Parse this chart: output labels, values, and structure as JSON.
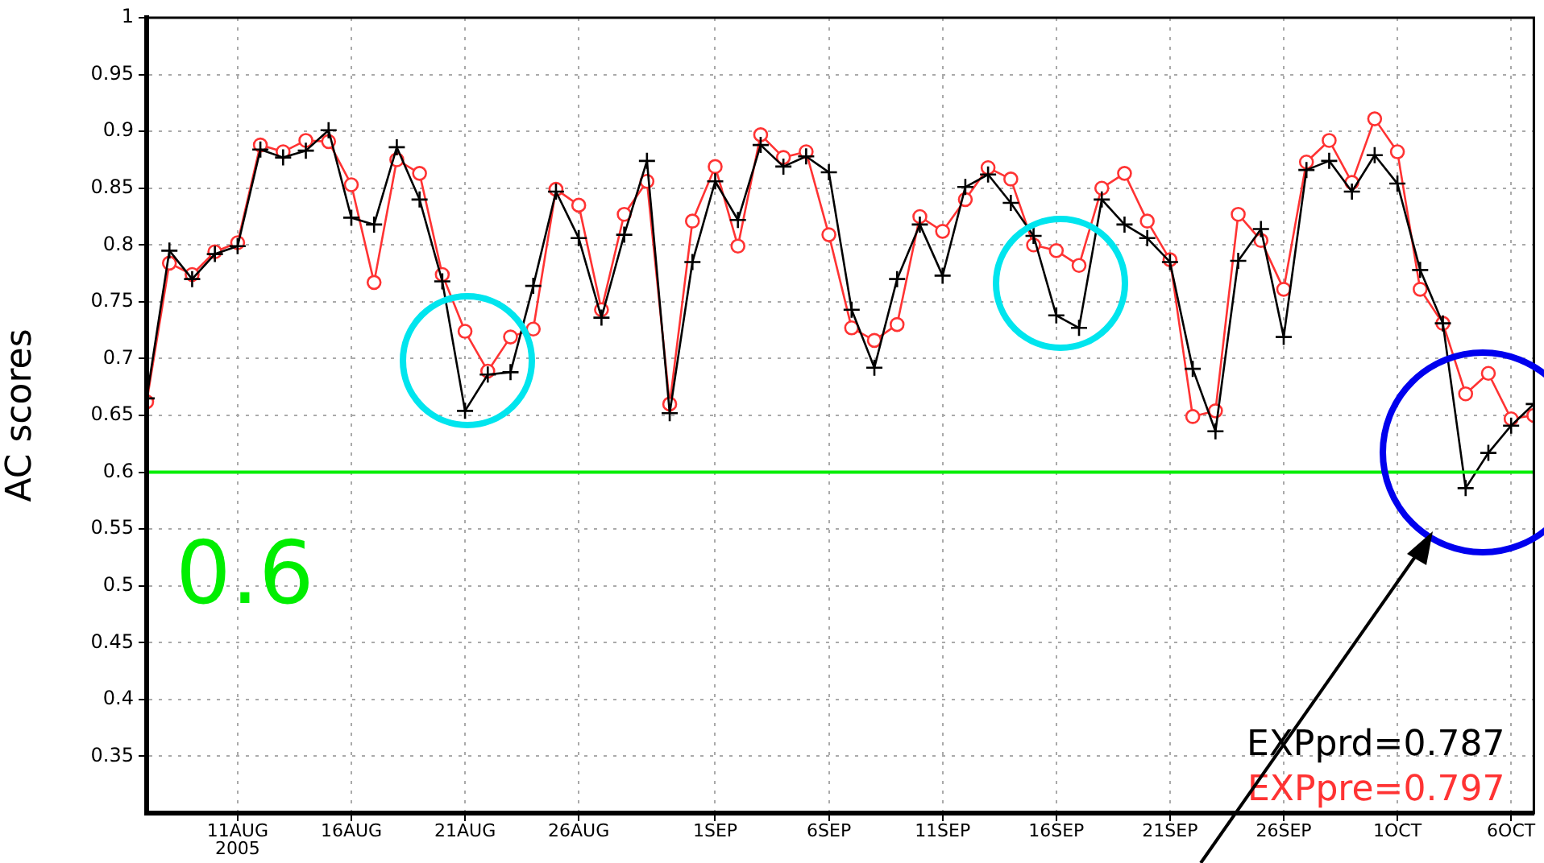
{
  "chart_data": {
    "type": "line",
    "ylabel": "AC scores",
    "x": [
      "2005-08-07",
      "2005-08-08",
      "2005-08-09",
      "2005-08-10",
      "2005-08-11",
      "2005-08-12",
      "2005-08-13",
      "2005-08-14",
      "2005-08-15",
      "2005-08-16",
      "2005-08-17",
      "2005-08-18",
      "2005-08-19",
      "2005-08-20",
      "2005-08-21",
      "2005-08-22",
      "2005-08-23",
      "2005-08-24",
      "2005-08-25",
      "2005-08-26",
      "2005-08-27",
      "2005-08-28",
      "2005-08-29",
      "2005-08-30",
      "2005-08-31",
      "2005-09-01",
      "2005-09-02",
      "2005-09-03",
      "2005-09-04",
      "2005-09-05",
      "2005-09-06",
      "2005-09-07",
      "2005-09-08",
      "2005-09-09",
      "2005-09-10",
      "2005-09-11",
      "2005-09-12",
      "2005-09-13",
      "2005-09-14",
      "2005-09-15",
      "2005-09-16",
      "2005-09-17",
      "2005-09-18",
      "2005-09-19",
      "2005-09-20",
      "2005-09-21",
      "2005-09-22",
      "2005-09-23",
      "2005-09-24",
      "2005-09-25",
      "2005-09-26",
      "2005-09-27",
      "2005-09-28",
      "2005-09-29",
      "2005-09-30",
      "2005-10-01",
      "2005-10-02",
      "2005-10-03",
      "2005-10-04",
      "2005-10-05",
      "2005-10-06",
      "2005-10-07"
    ],
    "series": [
      {
        "name": "EXPprd=0.787",
        "color": "#000000",
        "marker": "cross",
        "values": [
          0.665,
          0.795,
          0.77,
          0.792,
          0.799,
          0.884,
          0.877,
          0.883,
          0.901,
          0.824,
          0.818,
          0.886,
          0.84,
          0.768,
          0.654,
          0.686,
          0.688,
          0.764,
          0.847,
          0.806,
          0.736,
          0.809,
          0.874,
          0.652,
          0.785,
          0.856,
          0.822,
          0.888,
          0.869,
          0.878,
          0.864,
          0.743,
          0.692,
          0.77,
          0.818,
          0.773,
          0.851,
          0.862,
          0.837,
          0.808,
          0.738,
          0.727,
          0.84,
          0.818,
          0.806,
          0.785,
          0.691,
          0.636,
          0.786,
          0.814,
          0.719,
          0.866,
          0.874,
          0.847,
          0.879,
          0.854,
          0.778,
          0.731,
          0.586,
          0.617,
          0.641,
          0.66
        ]
      },
      {
        "name": "EXPpre=0.797",
        "color": "#ff3333",
        "marker": "circle",
        "values": [
          0.662,
          0.784,
          0.774,
          0.794,
          0.802,
          0.888,
          0.882,
          0.892,
          0.891,
          0.853,
          0.767,
          0.875,
          0.863,
          0.774,
          0.724,
          0.689,
          0.719,
          0.726,
          0.849,
          0.835,
          0.743,
          0.827,
          0.856,
          0.66,
          0.821,
          0.869,
          0.799,
          0.897,
          0.877,
          0.882,
          0.809,
          0.727,
          0.716,
          0.73,
          0.825,
          0.812,
          0.84,
          0.868,
          0.858,
          0.8,
          0.795,
          0.782,
          0.85,
          0.863,
          0.821,
          0.787,
          0.649,
          0.654,
          0.827,
          0.804,
          0.761,
          0.873,
          0.892,
          0.855,
          0.911,
          0.882,
          0.761,
          0.731,
          0.669,
          0.687,
          0.647,
          0.65
        ]
      }
    ],
    "xlim": [
      "2005-08-07",
      "2005-10-07"
    ],
    "xticks": [
      {
        "value": "2005-08-11",
        "label": "11AUG\n2005"
      },
      {
        "value": "2005-08-16",
        "label": "16AUG"
      },
      {
        "value": "2005-08-21",
        "label": "21AUG"
      },
      {
        "value": "2005-08-26",
        "label": "26AUG"
      },
      {
        "value": "2005-09-01",
        "label": "1SEP"
      },
      {
        "value": "2005-09-06",
        "label": "6SEP"
      },
      {
        "value": "2005-09-11",
        "label": "11SEP"
      },
      {
        "value": "2005-09-16",
        "label": "16SEP"
      },
      {
        "value": "2005-09-21",
        "label": "21SEP"
      },
      {
        "value": "2005-09-26",
        "label": "26SEP"
      },
      {
        "value": "2005-10-01",
        "label": "1OCT"
      },
      {
        "value": "2005-10-06",
        "label": "6OCT"
      }
    ],
    "ylim": [
      0.3,
      1
    ],
    "yticks": [
      0.35,
      0.4,
      0.45,
      0.5,
      0.55,
      0.6,
      0.65,
      0.7,
      0.75,
      0.8,
      0.85,
      0.9,
      0.95,
      1
    ],
    "grid": true,
    "legend": "bottom right",
    "ref_lines": [
      {
        "axis": "y",
        "value": 0.6,
        "label": "0.6",
        "color": "#00ee00"
      }
    ]
  }
}
